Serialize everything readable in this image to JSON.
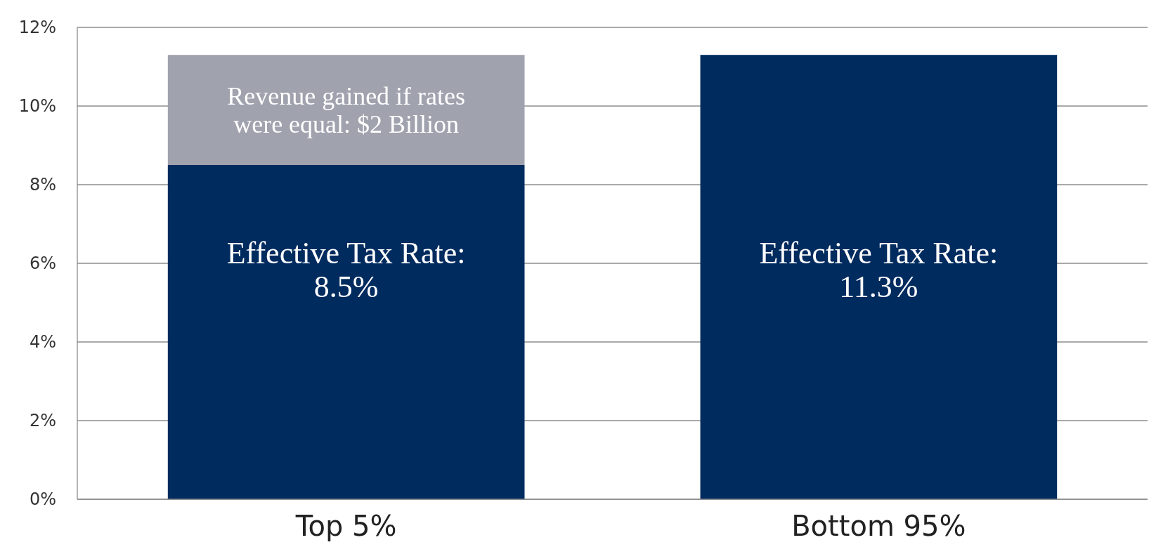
{
  "chart_data": {
    "type": "bar",
    "stacked": true,
    "categories": [
      "Top 5%",
      "Bottom 95%"
    ],
    "series": [
      {
        "color": "#002b5f",
        "values": [
          8.5,
          11.3
        ],
        "value_labels": [
          "Effective Tax Rate:\n8.5%",
          "Effective Tax Rate:\n11.3%"
        ]
      },
      {
        "color": "#a0a2ae",
        "values": [
          2.8,
          null
        ]
      }
    ],
    "ylim": [
      0,
      12
    ],
    "yticks": [
      {
        "value": 0,
        "label": "0%"
      },
      {
        "value": 2,
        "label": "2%"
      },
      {
        "value": 4,
        "label": "4%"
      },
      {
        "value": 6,
        "label": "6%"
      },
      {
        "value": 8,
        "label": "8%"
      },
      {
        "value": 10,
        "label": "10%"
      },
      {
        "value": 12,
        "label": "12%"
      }
    ],
    "annotations": [
      "Revenue gained if rates\nwere equal: $2 Billion"
    ],
    "grid": "y"
  }
}
